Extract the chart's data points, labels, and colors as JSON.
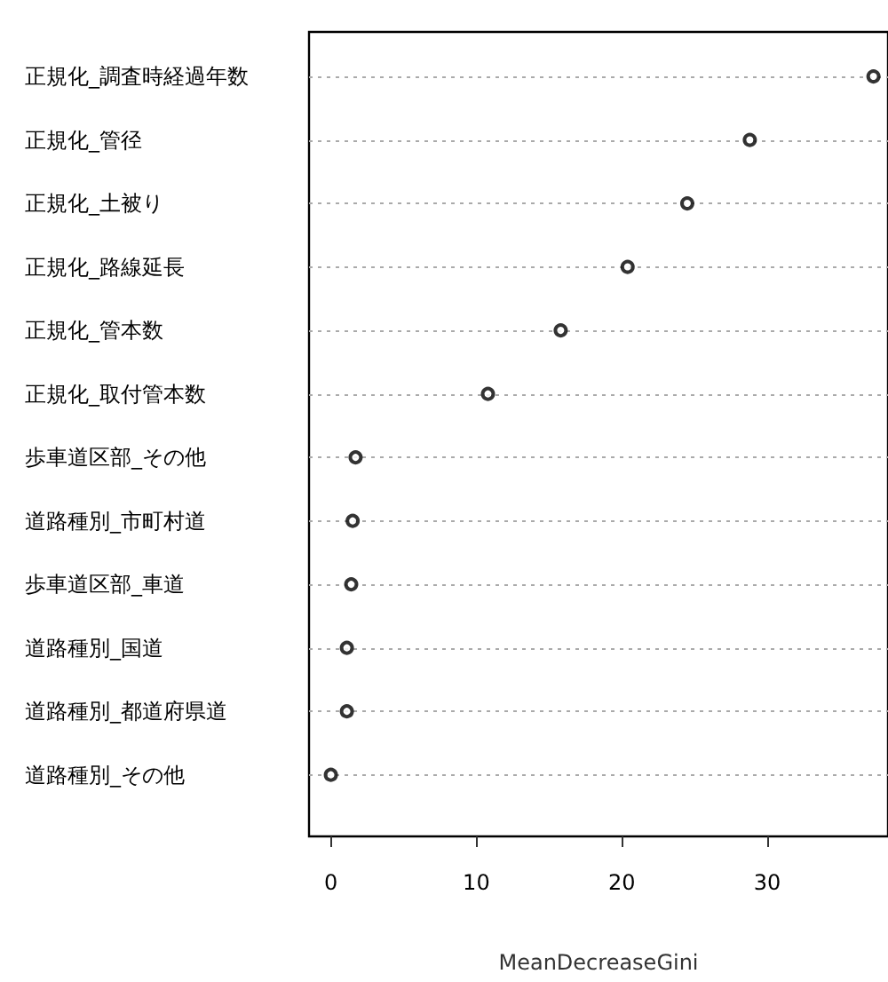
{
  "chart_data": {
    "type": "scatter",
    "orientation": "horizontal",
    "xlabel": "MeanDecreaseGini",
    "categories": [
      "正規化_調査時経過年数",
      "正規化_管径",
      "正規化_土被り",
      "正規化_路線延長",
      "正規化_管本数",
      "正規化_取付管本数",
      "歩車道区部_その他",
      "道路種別_市町村道",
      "歩車道区部_車道",
      "道路種別_国道",
      "道路種別_都道府県道",
      "道路種別_その他"
    ],
    "values": [
      37.3,
      28.8,
      24.5,
      20.4,
      15.8,
      10.8,
      1.7,
      1.5,
      1.4,
      1.1,
      1.1,
      0.0
    ],
    "color": "#000000",
    "marker": "circle",
    "grid": "y",
    "xlim": [
      -1.5,
      38.3
    ],
    "xticks": [
      0,
      10,
      20,
      30
    ]
  }
}
